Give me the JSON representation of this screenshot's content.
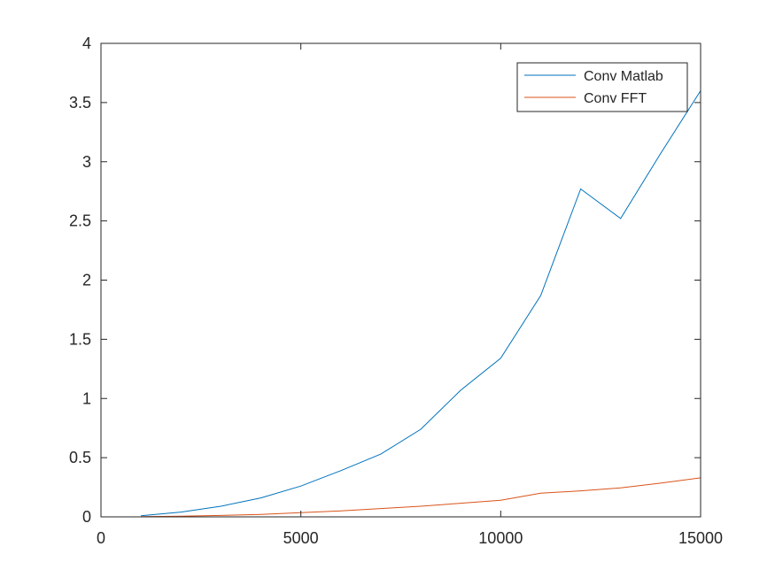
{
  "chart_data": {
    "type": "line",
    "title": "",
    "xlabel": "",
    "ylabel": "",
    "xlim": [
      0,
      15000
    ],
    "ylim": [
      0,
      4
    ],
    "grid": false,
    "legend_position": "top-right",
    "x_ticks": [
      0,
      5000,
      10000,
      15000
    ],
    "x_tick_labels": [
      "0",
      "5000",
      "10000",
      "15000"
    ],
    "y_ticks": [
      0,
      0.5,
      1,
      1.5,
      2,
      2.5,
      3,
      3.5,
      4
    ],
    "y_tick_labels": [
      "0",
      "0.5",
      "1",
      "1.5",
      "2",
      "2.5",
      "3",
      "3.5",
      "4"
    ],
    "x": [
      1000,
      2000,
      3000,
      4000,
      5000,
      6000,
      7000,
      8000,
      9000,
      10000,
      11000,
      12000,
      13000,
      14000,
      15000
    ],
    "series": [
      {
        "name": "Conv Matlab",
        "color": "#0072BD",
        "values": [
          0.01,
          0.04,
          0.09,
          0.16,
          0.26,
          0.39,
          0.53,
          0.74,
          1.07,
          1.34,
          1.87,
          2.77,
          2.52,
          3.07,
          3.6
        ]
      },
      {
        "name": "Conv FFT",
        "color": "#D95319",
        "values": [
          0.002,
          0.006,
          0.012,
          0.02,
          0.035,
          0.05,
          0.07,
          0.09,
          0.115,
          0.14,
          0.2,
          0.22,
          0.245,
          0.285,
          0.33
        ]
      }
    ]
  }
}
